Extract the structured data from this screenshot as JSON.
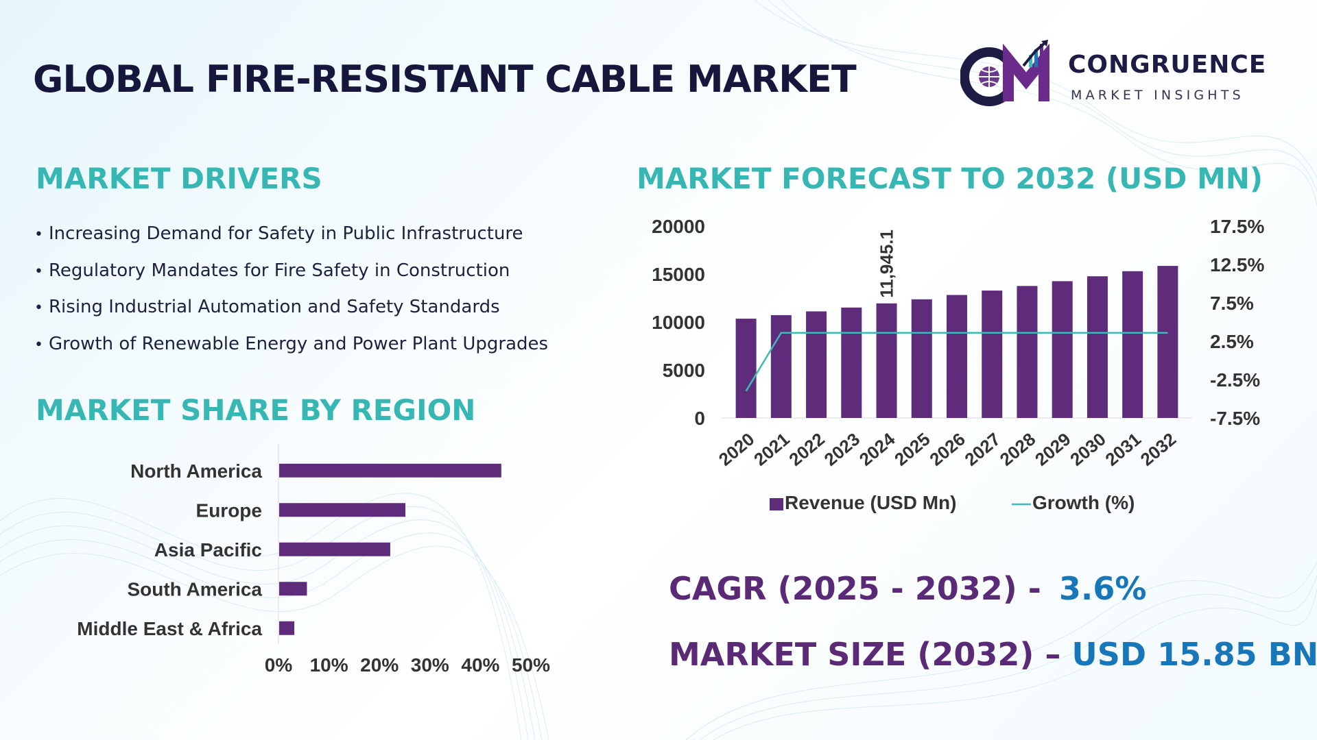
{
  "header": {
    "title": "GLOBAL FIRE-RESISTANT CABLE MARKET",
    "logo": {
      "monogram": "CM",
      "name": "CONGRUENCE",
      "subtitle": "MARKET INSIGHTS"
    }
  },
  "drivers": {
    "heading": "MARKET DRIVERS",
    "items": [
      "Increasing Demand for Safety in Public Infrastructure",
      "Regulatory Mandates for Fire Safety in Construction",
      "Rising Industrial Automation and Safety Standards",
      "Growth of Renewable Energy and Power Plant Upgrades"
    ]
  },
  "region": {
    "heading": "MARKET SHARE BY REGION"
  },
  "forecast": {
    "heading": "MARKET FORECAST TO 2032 (USD MN)"
  },
  "kpis": {
    "cagr_label": "CAGR (2025 - 2032) -",
    "cagr_value": "3.6%",
    "size_label": "MARKET SIZE (2032) –",
    "size_value": "USD 15.85 BN"
  },
  "colors": {
    "bar": "#5f2c7c",
    "line": "#3fb9b9",
    "heading": "#37b7b3",
    "kpi_label": "#5a2a76",
    "kpi_value": "#1877b9"
  },
  "chart_data": [
    {
      "type": "bar",
      "orientation": "horizontal",
      "categories": [
        "North America",
        "Europe",
        "Asia Pacific",
        "South America",
        "Middle East & Africa"
      ],
      "values": [
        44,
        25,
        22,
        5.5,
        3
      ],
      "xticks": [
        "0%",
        "10%",
        "20%",
        "30%",
        "40%",
        "50%"
      ],
      "xlim": [
        0,
        50
      ],
      "grid": false,
      "legend": "none"
    },
    {
      "type": "bar",
      "categories": [
        "2020",
        "2021",
        "2022",
        "2023",
        "2024",
        "2025",
        "2026",
        "2027",
        "2028",
        "2029",
        "2030",
        "2031",
        "2032"
      ],
      "series": [
        {
          "name": "Revenue (USD Mn)",
          "type": "bar",
          "axis": "left",
          "values": [
            10350,
            10720,
            11110,
            11510,
            11945.1,
            12370,
            12820,
            13280,
            13760,
            14260,
            14770,
            15300,
            15850
          ]
        },
        {
          "name": "Growth (%)",
          "type": "line",
          "axis": "right",
          "values": [
            -4.0,
            3.6,
            3.6,
            3.6,
            3.6,
            3.6,
            3.6,
            3.6,
            3.6,
            3.6,
            3.6,
            3.6,
            3.6
          ]
        }
      ],
      "data_labels": [
        {
          "category": "2024",
          "text": "11,945.1"
        }
      ],
      "yticks": [
        "0",
        "5000",
        "10000",
        "15000",
        "20000"
      ],
      "ylim": [
        0,
        20000
      ],
      "y2ticks": [
        "-7.5%",
        "-2.5%",
        "2.5%",
        "7.5%",
        "12.5%",
        "17.5%"
      ],
      "y2lim": [
        -7.5,
        17.5
      ],
      "grid": false,
      "legend": "bottom"
    }
  ]
}
